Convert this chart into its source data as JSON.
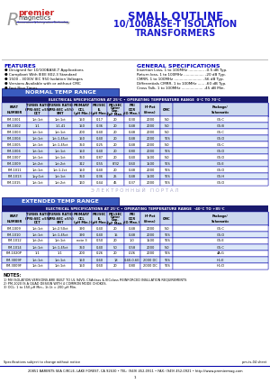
{
  "title_line1": "SMALL OUTLINE",
  "title_line2": "10/100BASE-T ISOLATION",
  "title_line3": "TRANSFORMERS",
  "features_title": "FEATURES",
  "features": [
    "Designed for 10/100BASE-T Applications",
    "Compliant With IEEE 802.3 Standard",
    "1500 - 3000V IEC 950 Isolation Voltages",
    "Versions Available with or without CMC",
    "Fast Rise Times"
  ],
  "gen_spec_title": "GENERAL SPECIFICATIONS",
  "gen_specs": [
    "Insertion Loss, 1 to 100MHz .............. -0.5 dB Typ.",
    "Return loss, 1 to 100MHz .................. -20 dB Typ.",
    "CMRR, 1 to 100MHz ......................... -56 dB Typ.",
    "Differentials CMRR, 1 to 100MHz ...... -60 dB Typ.",
    "Cross Talk, 1 to 100MHz ................... -45 dB Min."
  ],
  "normal_range_label": "NORMAL TEMP RANGE",
  "normal_spec_header": "ELECTRICAL SPECIFICATIONS AT 25°C • OPERATING TEMPERATURE RANGE  0°C TO 70°C",
  "extended_range_label": "EXTENDED TEMP RANGE",
  "extended_spec_header": "ELECTRICAL SPECIFICATIONS AT 25°C • OPERATING TEMPERATURE RANGE  -40°C TO +85°C",
  "col_labels": [
    "PART\nNUMBER",
    "TURNS RATIO\n(PRI:SEC ±5%)\nDCT",
    "TURNS RATIO\n(PRI:SEC ±5%)\nSMT",
    "PRIMARY\nOCL\n(μH Min.)",
    "PRI/SEC\nIL\n(μH Max.)",
    "PRI:SEC\nOuter\nCap.\n(pF Max.)",
    "PRI\nDCR\n(Ω Max.)",
    "Hi-Pot\n(Vrms)",
    "CMC",
    "Package/\nSchematic"
  ],
  "normal_rows": [
    [
      "PM-1001",
      "1ct:1ct",
      "1ct:1ct",
      "150",
      "0.17",
      "20",
      "0.30",
      "2000",
      "NO",
      "G1:C"
    ],
    [
      "PM-1002",
      "1:1",
      "1:1.41",
      "150",
      "0.36",
      "20",
      "0.48",
      "2000",
      "NO",
      "G1:B"
    ],
    [
      "PM-1003",
      "1ct:1ct",
      "1ct:1ct",
      "200",
      "0.40",
      "20",
      "0.48",
      "2000",
      "NO",
      "G1:C"
    ],
    [
      "PM-1004",
      "1ct:1ct",
      "1ct:1.45ct",
      "150",
      "0.40",
      "20",
      "0.48",
      "2000",
      "YES",
      "G1:D"
    ],
    [
      "PM-1005",
      "1ct:1ct",
      "1ct:1.45ct",
      "350",
      "0.25",
      "20",
      "0.48",
      "2000",
      "NO",
      "G1:C"
    ],
    [
      "PM-1006",
      "1ct:1ct",
      "1ct:1ct",
      "150",
      "0.40",
      "20",
      "0.80",
      "2000",
      "YES",
      "G1:D"
    ],
    [
      "PM-1007",
      "1ct:1ct",
      "1ct:1ct",
      "350",
      "0.87",
      "20",
      "0.40",
      "1500",
      "NO",
      "G1:D"
    ],
    [
      "PM-1009",
      "1ct:2ct",
      "1ct:2ct",
      "312",
      "0.55",
      "8/32",
      "0.60",
      "1500",
      "YES",
      "G1:E"
    ],
    [
      "PM-1011",
      "1ct:1ct",
      "1ct:1.2ct",
      "150",
      "0.40",
      "20",
      "0.48",
      "2000",
      "YES",
      "G1:D"
    ],
    [
      "PM-1013",
      "1by:1ct",
      "1ct:1ct",
      "350",
      "0.36",
      "25",
      "0.48",
      "1500",
      "YES",
      "G1:H"
    ],
    [
      "PM-1015",
      "1ct:1ct",
      "1ct:2ct",
      "160",
      "0.44",
      "45",
      "0.37",
      "2000",
      "YES",
      "G1:D"
    ]
  ],
  "extended_rows": [
    [
      "PM-1009",
      "1ct:1ct",
      "1ct:2.50ct",
      "390",
      "0.40",
      "20",
      "0.48",
      "2000",
      "NO",
      "G1:C"
    ],
    [
      "PM-1010",
      "1ct:1ct",
      "1ct:1.45ct",
      "390",
      "0.40",
      "15",
      "0.48",
      "2000",
      "YES",
      "G1:D"
    ],
    [
      "PM-1012",
      "1ct:2ct",
      "1ct:1ct",
      "note 3",
      "0.50",
      "20",
      "1.0",
      "1500",
      "YES",
      "G1:E"
    ],
    [
      "PM-1014",
      "1ct:1ct",
      "1ct:1.45ct",
      "350",
      "0.40",
      "50",
      "0.58",
      "2000",
      "NO",
      "G1:C"
    ],
    [
      "PM-1020P",
      "1:1",
      "1:1",
      "200",
      "0.26",
      "20",
      ".026",
      "2000",
      "YES",
      "4A:G"
    ],
    [
      "PM-3009F",
      "1ct:1ct",
      "1ct:1ct",
      "150",
      "0.60",
      "18",
      "0.40-0.60",
      "2000 DC",
      "YES",
      "H1:E"
    ],
    [
      "PM-3009F",
      "1ct:1ct",
      "1ct:1ct",
      "150",
      "0.60",
      "20",
      "0.80",
      "2000 DC",
      "YES",
      "H1:D"
    ]
  ],
  "notes": [
    "1) MV ISOLATION VERSIONS ARE BUILT TO UL 94V0, CSAclass & IECclass REINFORCED INSULATION REQUIREMENTS",
    "2) PM-1020 IS A QUAD DESIGN WITH 4 COMMON MODE CHOKES.",
    "3) OCL: 1 to 150 μH Min., 1t:1t = 200 μH Min."
  ],
  "address": "20851 BARENTS SEA CIRCLE, LAKE FOREST, CA 92630 • TEL: (949) 452-0911 • FAX: (949) 452-0921 • http://www.premiermag.com",
  "footer_left": "Specifications subject to change without notice",
  "footer_right": "pm-ts-04 sheet",
  "page_num": "1",
  "bg_color": "#ffffff",
  "table_header_bg": "#1a1a6e",
  "section_bg": "#3a5bbf",
  "section_fg": "#ffffff",
  "col_header_bg": "#ccd8ee",
  "row_alt1": "#ffffff",
  "row_alt2": "#dce8f8",
  "border_color": "#0000aa",
  "title_color": "#1a1acc",
  "features_color": "#0000bb",
  "gen_spec_color": "#0000bb",
  "watermark_color": "#aaaacc",
  "footer_line_color": "#0000aa"
}
